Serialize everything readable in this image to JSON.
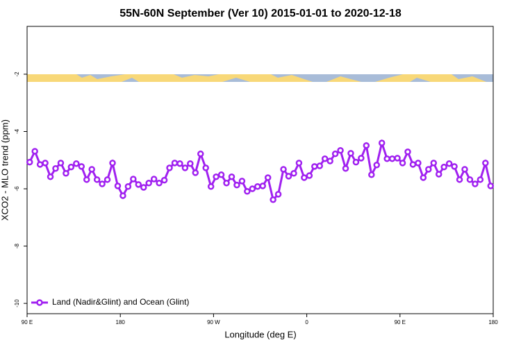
{
  "chart_data": {
    "type": "line",
    "title": "55N-60N September (Ver 10)   2015-01-01 to 2020-12-18",
    "xlabel": "Longitude (deg E)",
    "ylabel": "XCO2 - MLO trend (ppm)",
    "xlim": [
      90,
      540
    ],
    "ylim": [
      -10.36,
      -0.33
    ],
    "xticks": [
      {
        "value": 90,
        "label": "90 E"
      },
      180,
      {
        "value": 270,
        "label": "90 W"
      },
      {
        "value": 360,
        "label": "0"
      },
      {
        "value": 450,
        "label": "90 E"
      },
      {
        "value": 540,
        "label": "180"
      }
    ],
    "yticks": [
      -2,
      -4,
      -6,
      -8,
      -10
    ],
    "legend": "bottom-left",
    "x": [
      92.5,
      97.5,
      102.5,
      107.5,
      112.5,
      117.5,
      122.5,
      127.5,
      132.5,
      137.5,
      142.5,
      147.5,
      152.5,
      157.5,
      162.5,
      167.5,
      172.5,
      177.5,
      182.5,
      187.5,
      192.5,
      197.5,
      202.5,
      207.5,
      212.5,
      217.5,
      222.5,
      227.5,
      232.5,
      237.5,
      242.5,
      247.5,
      252.5,
      257.5,
      262.5,
      267.5,
      272.5,
      277.5,
      282.5,
      287.5,
      292.5,
      297.5,
      302.5,
      307.5,
      312.5,
      317.5,
      322.5,
      327.5,
      332.5,
      337.5,
      342.5,
      347.5,
      352.5,
      357.5,
      362.5,
      367.5,
      372.5,
      377.5,
      382.5,
      387.5,
      392.5,
      397.5,
      402.5,
      407.5,
      412.5,
      417.5,
      422.5,
      427.5,
      432.5,
      437.5,
      442.5,
      447.5,
      452.5,
      457.5,
      462.5,
      467.5,
      472.5,
      477.5,
      482.5,
      487.5,
      492.5,
      497.5,
      502.5,
      507.5,
      512.5,
      517.5,
      522.5,
      527.5,
      532.5,
      537.5
    ],
    "series": [
      {
        "name": "Land (Nadir&Glint) and Ocean (Glint)",
        "color": "#a020f0",
        "values": [
          -5.07,
          -4.69,
          -5.15,
          -5.1,
          -5.58,
          -5.29,
          -5.1,
          -5.46,
          -5.24,
          -5.12,
          -5.22,
          -5.68,
          -5.32,
          -5.68,
          -5.83,
          -5.68,
          -5.1,
          -5.9,
          -6.24,
          -5.92,
          -5.66,
          -5.85,
          -5.95,
          -5.8,
          -5.66,
          -5.8,
          -5.7,
          -5.27,
          -5.1,
          -5.12,
          -5.27,
          -5.12,
          -5.44,
          -4.78,
          -5.27,
          -5.92,
          -5.58,
          -5.51,
          -5.8,
          -5.58,
          -5.87,
          -5.73,
          -6.09,
          -6.0,
          -5.92,
          -5.9,
          -5.61,
          -6.38,
          -6.19,
          -5.32,
          -5.56,
          -5.46,
          -5.1,
          -5.61,
          -5.54,
          -5.22,
          -5.2,
          -4.95,
          -5.03,
          -4.78,
          -4.66,
          -5.29,
          -4.76,
          -5.07,
          -4.93,
          -4.49,
          -5.51,
          -5.17,
          -4.4,
          -4.95,
          -4.95,
          -4.93,
          -5.1,
          -4.71,
          -5.15,
          -5.1,
          -5.61,
          -5.32,
          -5.1,
          -5.49,
          -5.24,
          -5.12,
          -5.22,
          -5.68,
          -5.32,
          -5.68,
          -5.83,
          -5.68,
          -5.1,
          -5.9
        ]
      }
    ]
  }
}
